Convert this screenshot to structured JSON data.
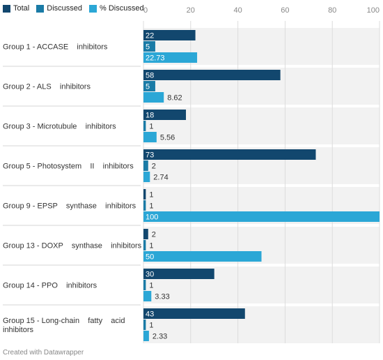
{
  "legend": [
    {
      "label": "Total",
      "color": "#12476e"
    },
    {
      "label": "Discussed",
      "color": "#1a7ba6"
    },
    {
      "label": "% Discussed",
      "color": "#2ba7d6"
    }
  ],
  "footer": "Created with Datawrapper",
  "chart_data": {
    "type": "bar",
    "orientation": "horizontal",
    "grouped": true,
    "categories": [
      "Group 1 - ACCASE inhibitors",
      "Group 2 - ALS inhibitors",
      "Group 3 - Microtubule inhibitors",
      "Group 5 - Photosystem II inhibitors",
      "Group 9 - EPSP synthase inhibitors",
      "Group 13 - DOXP synthase inhibitors",
      "Group 14 - PPO inhibitors",
      "Group 15 - Long-chain fatty acid inhibitors"
    ],
    "category_lines": [
      [
        "Group 1 - ACCASE    inhibitors"
      ],
      [
        "Group 2 - ALS    inhibitors"
      ],
      [
        "Group 3 - Microtubule    inhibitors"
      ],
      [
        "Group 5 - Photosystem    II    inhibitors"
      ],
      [
        "Group 9 - EPSP    synthase    inhibitors"
      ],
      [
        "Group 13 - DOXP    synthase    inhibitors"
      ],
      [
        "Group 14 - PPO    inhibitors"
      ],
      [
        "Group 15 - Long-chain    fatty    acid",
        "inhibitors"
      ]
    ],
    "series": [
      {
        "name": "Total",
        "color": "#12476e",
        "values": [
          22,
          58,
          18,
          73,
          1,
          2,
          30,
          43
        ],
        "labels": [
          "22",
          "58",
          "18",
          "73",
          "1",
          "2",
          "30",
          "43"
        ]
      },
      {
        "name": "Discussed",
        "color": "#1a7ba6",
        "values": [
          5,
          5,
          1,
          2,
          1,
          1,
          1,
          1
        ],
        "labels": [
          "5",
          "5",
          "1",
          "2",
          "1",
          "1",
          "1",
          "1"
        ]
      },
      {
        "name": "% Discussed",
        "color": "#2ba7d6",
        "values": [
          22.73,
          8.62,
          5.56,
          2.74,
          100,
          50,
          3.33,
          2.33
        ],
        "labels": [
          "22.73",
          "8.62",
          "5.56",
          "2.74",
          "100",
          "50",
          "3.33",
          "2.33"
        ]
      }
    ],
    "xlim": [
      0,
      100
    ],
    "xticks": [
      0,
      20,
      40,
      60,
      80,
      100
    ],
    "xtick_labels": [
      "0",
      "20",
      "40",
      "60",
      "80",
      "100"
    ],
    "grid": true,
    "legend_position": "top-left",
    "row_background": "#f2f2f2",
    "grid_color": "#dcdcdc"
  }
}
